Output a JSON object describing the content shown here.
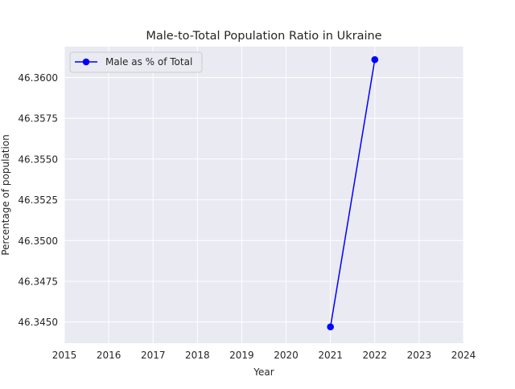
{
  "chart_data": {
    "type": "line",
    "title": "Male-to-Total Population Ratio in Ukraine",
    "xlabel": "Year",
    "ylabel": "Percentage of population",
    "x": [
      2021,
      2022
    ],
    "series": [
      {
        "name": "Male as % of Total",
        "values": [
          46.3447,
          46.3611
        ],
        "color": "#0000ff",
        "marker": "circle"
      }
    ],
    "xlim": [
      2015,
      2024
    ],
    "ylim": [
      46.3437,
      46.3619
    ],
    "xticks": [
      2015,
      2016,
      2017,
      2018,
      2019,
      2020,
      2021,
      2022,
      2023,
      2024
    ],
    "xtick_labels": [
      "2015",
      "2016",
      "2017",
      "2018",
      "2019",
      "2020",
      "2021",
      "2022",
      "2023",
      "2024"
    ],
    "yticks": [
      46.345,
      46.3475,
      46.35,
      46.3525,
      46.355,
      46.3575,
      46.36
    ],
    "ytick_labels": [
      "46.3450",
      "46.3475",
      "46.3500",
      "46.3525",
      "46.3550",
      "46.3575",
      "46.3600"
    ],
    "grid": true,
    "legend_position": "top-left",
    "plot_background": "#eaeaf2",
    "grid_color": "#ffffff"
  }
}
